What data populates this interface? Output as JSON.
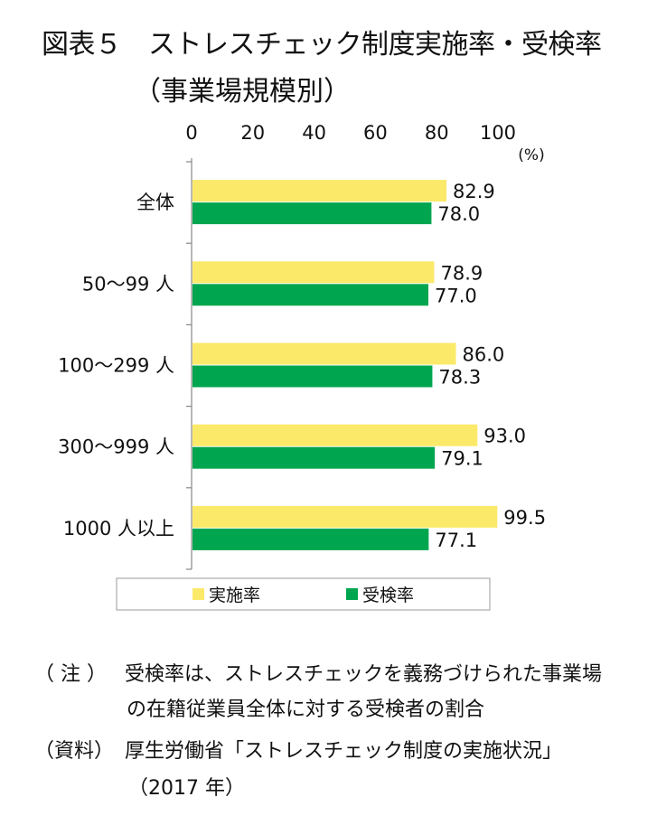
{
  "title": "図表５　ストレスチェック制度実施率・受検率",
  "subtitle": "（事業場規模別）",
  "chart_data": {
    "type": "bar",
    "orientation": "horizontal",
    "unit_label": "(%)",
    "xlim": [
      0,
      100
    ],
    "x_ticks": [
      "0",
      "20",
      "40",
      "60",
      "80",
      "100"
    ],
    "categories": [
      "全体",
      "50～99 人",
      "100～299 人",
      "300～999 人",
      "1000 人以上"
    ],
    "series": [
      {
        "name": "実施率",
        "color": "#fbe96a",
        "values": [
          82.9,
          78.9,
          86.0,
          93.0,
          99.5
        ]
      },
      {
        "name": "受検率",
        "color": "#00a64f",
        "values": [
          78.0,
          77.0,
          78.3,
          79.1,
          77.1
        ]
      }
    ],
    "value_labels": [
      [
        "82.9",
        "78.9",
        "86.0",
        "93.0",
        "99.5"
      ],
      [
        "78.0",
        "77.0",
        "78.3",
        "79.1",
        "77.1"
      ]
    ],
    "legend_position": "bottom",
    "grid": false
  },
  "notes": {
    "note_tag": "（ 注 ）",
    "note_line1": "受検率は、ストレスチェックを義務づけられた事業場",
    "note_line2": "の在籍従業員全体に対する受検者の割合",
    "source_tag": "（資料）",
    "source_line1": "厚生労働省「ストレスチェック制度の実施状況」",
    "source_line2": "（2017 年）"
  }
}
